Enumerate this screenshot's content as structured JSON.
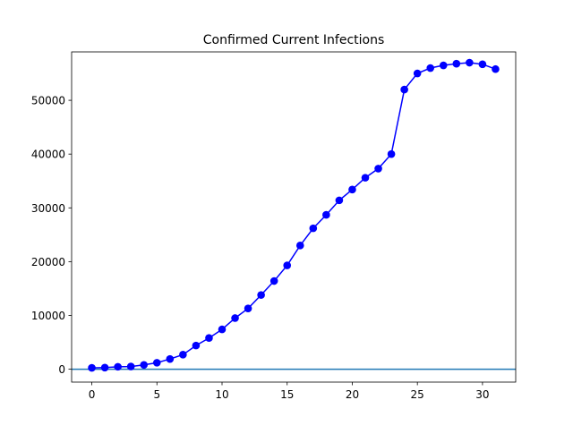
{
  "chart_data": {
    "type": "line",
    "title": "Confirmed Current Infections",
    "xlabel": "",
    "ylabel": "",
    "xlim": [
      -1.55,
      32.55
    ],
    "ylim": [
      -2400,
      59000
    ],
    "xticks": [
      0,
      5,
      10,
      15,
      20,
      25,
      30
    ],
    "xtick_labels": [
      "0",
      "5",
      "10",
      "15",
      "20",
      "25",
      "30"
    ],
    "yticks": [
      0,
      10000,
      20000,
      30000,
      40000,
      50000
    ],
    "ytick_labels": [
      "0",
      "10000",
      "20000",
      "30000",
      "40000",
      "50000"
    ],
    "grid": false,
    "legend": false,
    "series": [
      {
        "color": "#0000ff",
        "marker": "circle",
        "x": [
          0,
          1,
          2,
          3,
          4,
          5,
          6,
          7,
          8,
          9,
          10,
          11,
          12,
          13,
          14,
          15,
          16,
          17,
          18,
          19,
          20,
          21,
          22,
          23,
          24,
          25,
          26,
          27,
          28,
          29,
          30,
          31
        ],
        "y": [
          250,
          300,
          450,
          500,
          800,
          1200,
          1900,
          2700,
          4400,
          5800,
          7400,
          9500,
          11300,
          13800,
          16400,
          19300,
          23000,
          26200,
          28700,
          31400,
          33400,
          35600,
          37300,
          40000,
          52000,
          55000,
          56000,
          56500,
          56800,
          57000,
          56700,
          55800
        ]
      }
    ],
    "reference_lines": [
      {
        "orientation": "horizontal",
        "y": 0,
        "color": "#1f77b4"
      }
    ]
  }
}
